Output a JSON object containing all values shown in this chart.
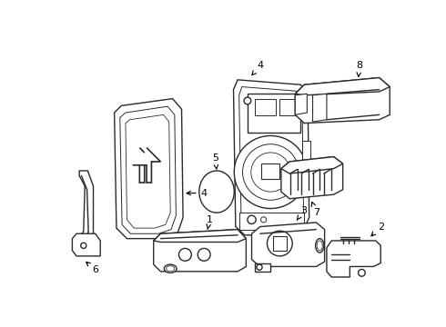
{
  "background_color": "#ffffff",
  "line_color": "#2a2a2a",
  "line_width": 1.0,
  "figsize": [
    4.9,
    3.6
  ],
  "dpi": 100
}
